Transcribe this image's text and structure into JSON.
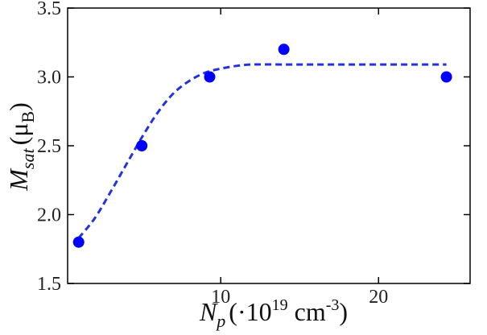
{
  "chart_data": {
    "type": "scatter",
    "title": "",
    "xlabel": {
      "main": "N",
      "main_sub": "p",
      "rest_pre": "(·10",
      "exp1": "19",
      "rest_mid": " cm",
      "exp2": "-3",
      "rest_post": ")"
    },
    "ylabel": {
      "main": "M",
      "main_sub": "sat",
      "rest_pre": "(μ",
      "unit_sub": "B",
      "rest_post": ")"
    },
    "xlim": [
      0.3,
      25.8
    ],
    "ylim": [
      1.5,
      3.5
    ],
    "x_ticks": [
      {
        "value": 10,
        "label": "10"
      },
      {
        "value": 20,
        "label": "20"
      }
    ],
    "y_ticks": [
      {
        "value": 1.5,
        "label": "1.5"
      },
      {
        "value": 2.0,
        "label": "2.0"
      },
      {
        "value": 2.5,
        "label": "2.5"
      },
      {
        "value": 3.0,
        "label": "3.0"
      },
      {
        "value": 3.5,
        "label": "3.5"
      }
    ],
    "grid": false,
    "series": [
      {
        "kind": "points",
        "color": "#0000ff",
        "x": [
          1.0,
          5.0,
          9.3,
          14.0,
          24.3
        ],
        "y": [
          1.8,
          2.5,
          3.0,
          3.2,
          3.0
        ]
      },
      {
        "kind": "fit-dashed-line",
        "color": "#2233dd",
        "x": [
          1.0,
          2.0,
          3.0,
          4.0,
          5.0,
          6.0,
          7.0,
          8.0,
          9.0,
          10.0,
          11.0,
          12.0,
          14.0,
          16.0,
          18.0,
          20.0,
          22.0,
          24.3
        ],
        "y": [
          1.83,
          1.97,
          2.16,
          2.36,
          2.56,
          2.74,
          2.88,
          2.97,
          3.03,
          3.06,
          3.08,
          3.09,
          3.09,
          3.09,
          3.09,
          3.09,
          3.09,
          3.09
        ]
      }
    ]
  }
}
